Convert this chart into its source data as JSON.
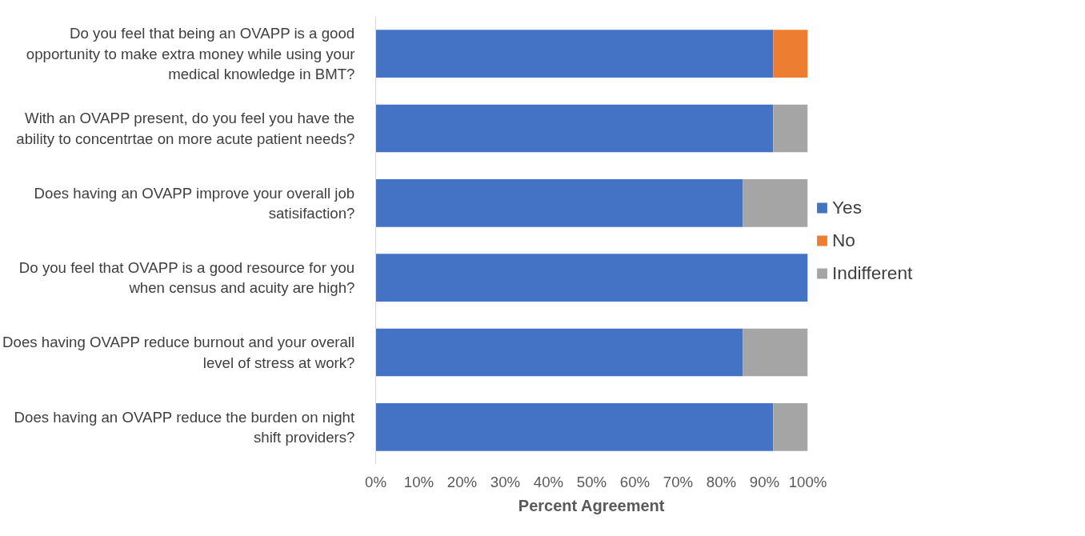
{
  "chart_data": {
    "type": "bar",
    "orientation": "horizontal",
    "stacked": true,
    "xlabel": "Percent Agreement",
    "categories": [
      "Do you feel that being an OVAPP is a good opportunity to make extra money while using your medical knowledge in BMT?",
      "With an OVAPP present, do you feel you have the ability to concentrtae on more acute patient needs?",
      "Does having an OVAPP improve your overall job satisifaction?",
      "Do you feel that OVAPP is a good resource for you when census and acuity are high?",
      "Does having OVAPP reduce burnout and your overall level of stress at work?",
      "Does having an OVAPP reduce the burden on night shift providers?"
    ],
    "series": [
      {
        "name": "Yes",
        "color": "#4472c4",
        "values": [
          92,
          92,
          85,
          100,
          85,
          92
        ]
      },
      {
        "name": "No",
        "color": "#ed7d31",
        "values": [
          8,
          0,
          0,
          0,
          0,
          0
        ]
      },
      {
        "name": "Indifferent",
        "color": "#a5a5a5",
        "values": [
          0,
          8,
          15,
          0,
          15,
          8
        ]
      }
    ],
    "xlim": [
      0,
      100
    ],
    "xticks": [
      {
        "value": 0,
        "label": "0%"
      },
      {
        "value": 10,
        "label": "10%"
      },
      {
        "value": 20,
        "label": "20%"
      },
      {
        "value": 30,
        "label": "30%"
      },
      {
        "value": 40,
        "label": "40%"
      },
      {
        "value": 50,
        "label": "50%"
      },
      {
        "value": 60,
        "label": "60%"
      },
      {
        "value": 70,
        "label": "70%"
      },
      {
        "value": 80,
        "label": "80%"
      },
      {
        "value": 90,
        "label": "90%"
      },
      {
        "value": 100,
        "label": "100%"
      }
    ],
    "legend": "right"
  }
}
